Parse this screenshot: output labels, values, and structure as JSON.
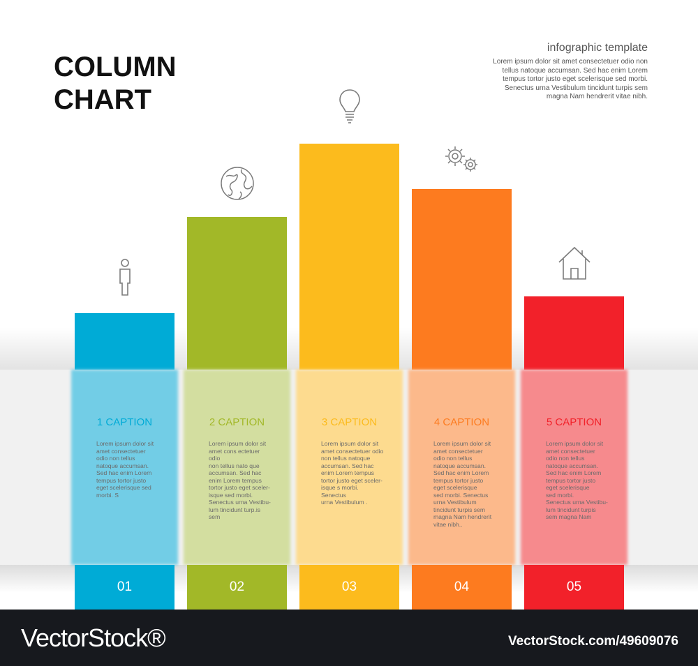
{
  "header": {
    "title_line1": "COLUMN",
    "title_line2": "CHART",
    "subtitle": "infographic template",
    "subtext_lines": [
      "Lorem ipsum dolor sit amet consectetuer odio non",
      "tellus natoque accumsan. Sed hac enim Lorem",
      "tempus tortor justo eget scelerisque sed morbi.",
      "Senectus urna Vestibulum tincidunt turpis sem",
      "magna Nam hendrerit vitae nibh."
    ]
  },
  "chart_data": {
    "type": "bar",
    "categories": [
      "01",
      "02",
      "03",
      "04",
      "05"
    ],
    "values": [
      1.0,
      2.7,
      4.0,
      3.2,
      1.3
    ],
    "ylim": [
      0,
      4.2
    ],
    "grid": false,
    "legend": "none",
    "colors": [
      "#00abd6",
      "#a2b828",
      "#fcbb1d",
      "#fd7b1f",
      "#f2212a"
    ],
    "light_colors": [
      "#72cde6",
      "#d3dea0",
      "#fddb8f",
      "#fcb98b",
      "#f68a8d"
    ],
    "captions": [
      "1 CAPTION",
      "2 CAPTION",
      "3 CAPTION",
      "4 CAPTION",
      "5 CAPTION"
    ],
    "icons": [
      "person-icon",
      "globe-icon",
      "lightbulb-icon",
      "gears-icon",
      "house-icon"
    ],
    "descriptions": [
      [
        "Lorem ipsum dolor sit",
        "amet consectetuer",
        "odio non tellus",
        "natoque accumsan.",
        "Sed hac enim Lorem",
        "tempus tortor justo",
        "eget scelerisque sed",
        "morbi. S"
      ],
      [
        "Lorem ipsum dolor sit",
        "amet cons ectetuer odio",
        "non tellus nato que",
        "accumsan. Sed hac",
        "enim Lorem tempus",
        "tortor justo eget sceler-",
        "isque sed morbi.",
        "Senectus urna Vestibu-",
        "lum tincidunt turp.is sem"
      ],
      [
        "Lorem ipsum dolor sit",
        "amet consectetuer odio",
        "non tellus natoque",
        "accumsan. Sed hac",
        "enim Lorem tempus",
        "tortor justo eget sceler-",
        "isque s morbi. Senectus",
        "urna Vestibulum ."
      ],
      [
        "Lorem ipsum dolor sit",
        "amet consectetuer",
        "odio non tellus",
        "natoque accumsan.",
        "Sed hac enim Lorem",
        "tempus tortor justo",
        "eget scelerisque",
        "sed morbi. Senectus",
        "urna Vestibulum",
        "tincidunt turpis sem",
        "magna Nam hendrerit",
        "vitae nibh.."
      ],
      [
        "Lorem ipsum dolor sit",
        "amet consectetuer",
        "odio non tellus",
        "natoque accumsan.",
        "Sed hac enim Lorem",
        "tempus tortor justo",
        "eget scelerisque",
        "sed morbi.",
        "Senectus urna Vestibu-",
        "lum tincidunt turpis",
        "sem magna Nam"
      ]
    ]
  },
  "footer": {
    "brand": "VectorStock®",
    "image_id": "VectorStock.com/49609076"
  }
}
